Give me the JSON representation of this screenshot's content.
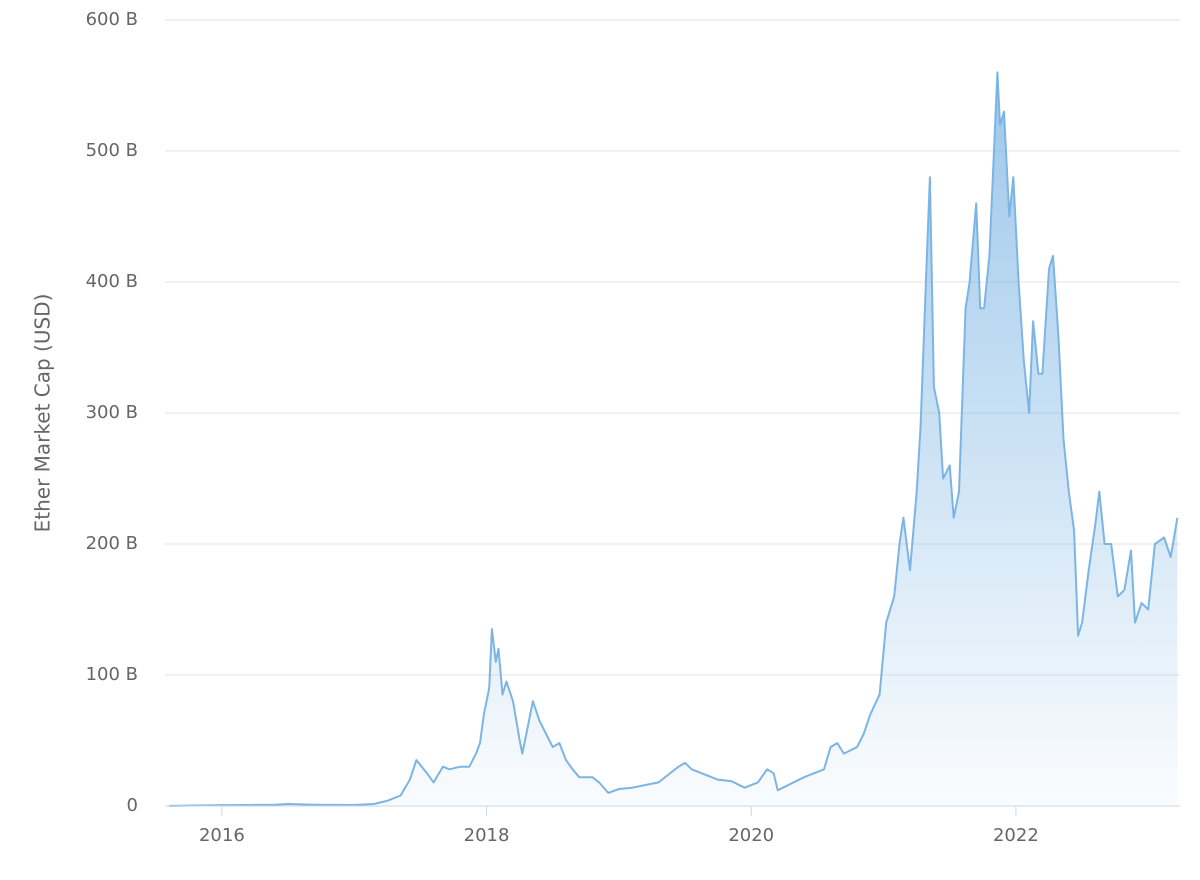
{
  "chart_data": {
    "type": "area",
    "y_axis_label": "Ether Market Cap (USD)",
    "color": "#7cb5e4",
    "grid": true,
    "xlim": [
      2015.57,
      2023.24
    ],
    "xticks": [
      2016,
      2018,
      2020,
      2022
    ],
    "ylim": [
      0,
      600
    ],
    "yticks": [
      0,
      {
        "value": 100,
        "label": "100 B"
      },
      {
        "value": 200,
        "label": "200 B"
      },
      {
        "value": 300,
        "label": "300 B"
      },
      {
        "value": 400,
        "label": "400 B"
      },
      {
        "value": 500,
        "label": "500 B"
      },
      {
        "value": 600,
        "label": "600 B"
      }
    ],
    "x": [
      2015.6,
      2016.0,
      2016.2,
      2016.4,
      2016.5,
      2016.7,
      2017.0,
      2017.15,
      2017.25,
      2017.35,
      2017.42,
      2017.47,
      2017.55,
      2017.6,
      2017.67,
      2017.72,
      2017.8,
      2017.87,
      2017.92,
      2017.95,
      2017.98,
      2018.02,
      2018.04,
      2018.07,
      2018.09,
      2018.12,
      2018.15,
      2018.2,
      2018.25,
      2018.27,
      2018.3,
      2018.35,
      2018.4,
      2018.45,
      2018.5,
      2018.55,
      2018.6,
      2018.65,
      2018.7,
      2018.8,
      2018.85,
      2018.92,
      2019.0,
      2019.1,
      2019.2,
      2019.3,
      2019.4,
      2019.45,
      2019.5,
      2019.55,
      2019.65,
      2019.75,
      2019.85,
      2019.95,
      2020.05,
      2020.12,
      2020.17,
      2020.2,
      2020.3,
      2020.4,
      2020.5,
      2020.55,
      2020.6,
      2020.65,
      2020.7,
      2020.8,
      2020.85,
      2020.9,
      2020.97,
      2021.02,
      2021.05,
      2021.08,
      2021.12,
      2021.15,
      2021.2,
      2021.25,
      2021.28,
      2021.32,
      2021.35,
      2021.38,
      2021.42,
      2021.45,
      2021.5,
      2021.53,
      2021.57,
      2021.62,
      2021.65,
      2021.7,
      2021.73,
      2021.76,
      2021.8,
      2021.83,
      2021.86,
      2021.88,
      2021.91,
      2021.95,
      2021.98,
      2022.02,
      2022.06,
      2022.1,
      2022.13,
      2022.17,
      2022.2,
      2022.25,
      2022.28,
      2022.32,
      2022.36,
      2022.4,
      2022.44,
      2022.47,
      2022.5,
      2022.55,
      2022.6,
      2022.63,
      2022.67,
      2022.72,
      2022.77,
      2022.82,
      2022.87,
      2022.9,
      2022.95,
      2023.0,
      2023.05,
      2023.12,
      2023.17,
      2023.22
    ],
    "values": [
      0.1,
      0.7,
      0.8,
      1.0,
      1.5,
      1.0,
      0.8,
      1.5,
      4,
      8,
      20,
      35,
      25,
      18,
      30,
      28,
      30,
      30,
      40,
      48,
      70,
      90,
      135,
      110,
      120,
      85,
      95,
      80,
      50,
      40,
      55,
      80,
      65,
      55,
      45,
      48,
      35,
      28,
      22,
      22,
      18,
      10,
      13,
      14,
      16,
      18,
      26,
      30,
      33,
      28,
      24,
      20,
      19,
      14,
      18,
      28,
      25,
      12,
      17,
      22,
      26,
      28,
      45,
      48,
      40,
      45,
      55,
      70,
      85,
      140,
      150,
      160,
      200,
      220,
      180,
      240,
      290,
      400,
      480,
      320,
      300,
      250,
      260,
      220,
      240,
      380,
      400,
      460,
      380,
      380,
      420,
      490,
      560,
      520,
      530,
      450,
      480,
      400,
      340,
      300,
      370,
      330,
      330,
      410,
      420,
      360,
      280,
      240,
      210,
      130,
      140,
      180,
      215,
      240,
      200,
      200,
      160,
      165,
      195,
      140,
      155,
      150,
      200,
      205,
      190,
      220
    ]
  }
}
